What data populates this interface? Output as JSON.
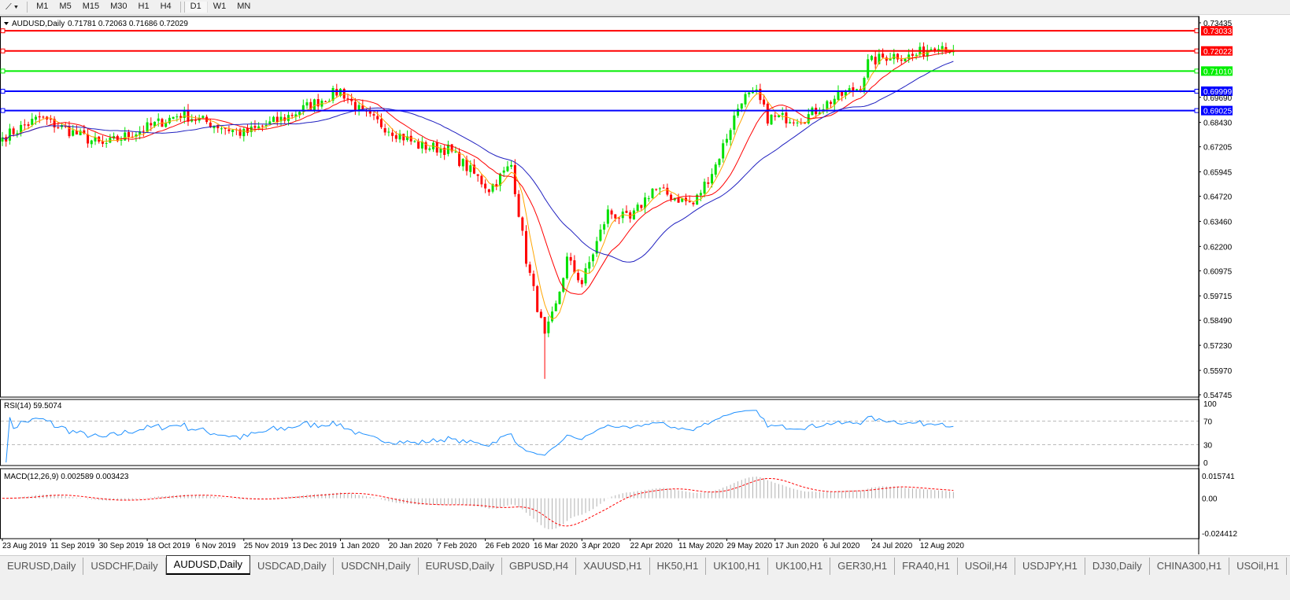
{
  "toolbar": {
    "timeframes": [
      "M1",
      "M5",
      "M15",
      "M30",
      "H1",
      "H4",
      "D1",
      "W1",
      "MN"
    ],
    "active": "D1"
  },
  "chart_data": {
    "type": "candlestick",
    "title": "AUDUSD,Daily",
    "ohlc_label": "0.71781 0.72063 0.71686 0.72029",
    "ylim": [
      0.54745,
      0.73435
    ],
    "y_ticks": [
      "0.73435",
      "0.69690",
      "0.68430",
      "0.67205",
      "0.65945",
      "0.64720",
      "0.63460",
      "0.62200",
      "0.60975",
      "0.59715",
      "0.58490",
      "0.57230",
      "0.55970",
      "0.54745"
    ],
    "x_ticks": [
      "23 Aug 2019",
      "11 Sep 2019",
      "30 Sep 2019",
      "18 Oct 2019",
      "6 Nov 2019",
      "25 Nov 2019",
      "13 Dec 2019",
      "1 Jan 2020",
      "20 Jan 2020",
      "7 Feb 2020",
      "26 Feb 2020",
      "16 Mar 2020",
      "3 Apr 2020",
      "22 Apr 2020",
      "11 May 2020",
      "29 May 2020",
      "17 Jun 2020",
      "6 Jul 2020",
      "24 Jul 2020",
      "12 Aug 2020"
    ],
    "close_keyframes": [
      {
        "day": 0,
        "close": 0.6767
      },
      {
        "day": 10,
        "close": 0.6866
      },
      {
        "day": 27,
        "close": 0.6727
      },
      {
        "day": 48,
        "close": 0.6885
      },
      {
        "day": 65,
        "close": 0.6786
      },
      {
        "day": 76,
        "close": 0.6866
      },
      {
        "day": 91,
        "close": 0.7004
      },
      {
        "day": 97,
        "close": 0.6885
      },
      {
        "day": 112,
        "close": 0.6727
      },
      {
        "day": 120,
        "close": 0.6707
      },
      {
        "day": 131,
        "close": 0.651
      },
      {
        "day": 137,
        "close": 0.6629
      },
      {
        "day": 141,
        "close": 0.6155
      },
      {
        "day": 146,
        "close": 0.576
      },
      {
        "day": 149,
        "close": 0.5918
      },
      {
        "day": 152,
        "close": 0.6155
      },
      {
        "day": 156,
        "close": 0.6036
      },
      {
        "day": 163,
        "close": 0.6392
      },
      {
        "day": 169,
        "close": 0.6352
      },
      {
        "day": 175,
        "close": 0.651
      },
      {
        "day": 186,
        "close": 0.6431
      },
      {
        "day": 192,
        "close": 0.6629
      },
      {
        "day": 199,
        "close": 0.6964
      },
      {
        "day": 203,
        "close": 0.6984
      },
      {
        "day": 206,
        "close": 0.6866
      },
      {
        "day": 216,
        "close": 0.6866
      },
      {
        "day": 224,
        "close": 0.6964
      },
      {
        "day": 231,
        "close": 0.7024
      },
      {
        "day": 233,
        "close": 0.7142
      },
      {
        "day": 239,
        "close": 0.7182
      },
      {
        "day": 245,
        "close": 0.7174
      },
      {
        "day": 252,
        "close": 0.7241
      },
      {
        "day": 256,
        "close": 0.7203
      }
    ],
    "horizontal_lines": [
      {
        "price": "0.73033",
        "color": "#ff0000"
      },
      {
        "price": "0.72022",
        "color": "#ff0000"
      },
      {
        "price": "0.71010",
        "color": "#00ee00"
      },
      {
        "price": "0.69999",
        "color": "#0000ff"
      },
      {
        "price": "0.69025",
        "color": "#0000ff"
      }
    ],
    "colors": {
      "bull": "#00e000",
      "bear": "#ff0000",
      "ma_fast": "#ffa500",
      "ma_mid": "#ff0000",
      "ma_slow": "#2020c0",
      "rsi": "#1e90ff",
      "macd_hist": "#b0b0b0",
      "macd_signal": "#ff0000"
    },
    "rsi": {
      "label": "RSI(14) 59.5074",
      "levels": [
        "100",
        "70",
        "30",
        "0"
      ]
    },
    "macd": {
      "label": "MACD(12,26,9) 0.002589 0.003423",
      "ticks": [
        "0.015741",
        "0.00",
        "-0.024412"
      ],
      "ylim": [
        -0.024412,
        0.015741
      ]
    }
  },
  "tabs": {
    "items": [
      "EURUSD,Daily",
      "USDCHF,Daily",
      "AUDUSD,Daily",
      "USDCAD,Daily",
      "USDCNH,Daily",
      "EURUSD,Daily",
      "GBPUSD,H4",
      "XAUUSD,H1",
      "HK50,H1",
      "UK100,H1",
      "UK100,H1",
      "GER30,H1",
      "FRA40,H1",
      "USOil,H4",
      "USDJPY,H1",
      "DJ30,Daily",
      "CHINA300,H1",
      "USOil,H1"
    ],
    "active": 2,
    "arrows": "◂ ▸"
  }
}
